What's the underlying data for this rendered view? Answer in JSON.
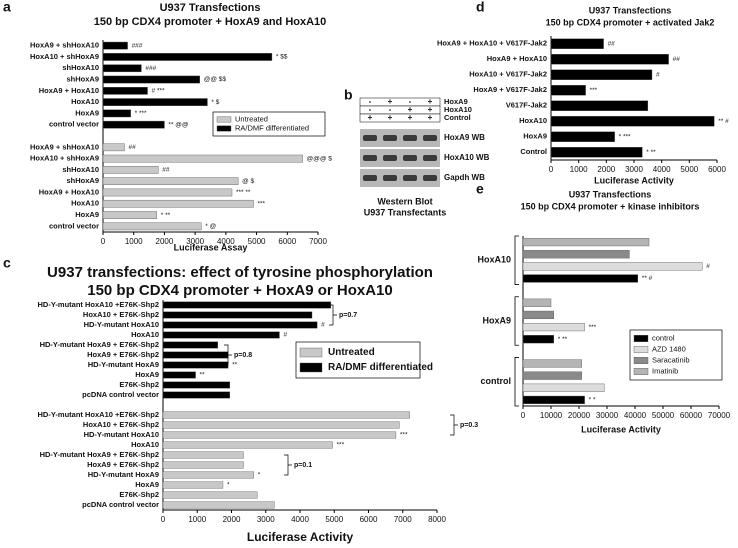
{
  "chart_data": [
    {
      "type": "bar",
      "panel": "a",
      "title": "U937 Transfections",
      "subtitle": "150 bp CDX4 promoter + HoxA9 and HoxA10",
      "categories": [
        "HoxA9 + shHoxA10",
        "HoxA10 + shHoxA9",
        "shHoxA10",
        "shHoxA9",
        "HoxA9 + HoxA10",
        "HoxA10",
        "HoxA9",
        "control vector"
      ],
      "series": [
        {
          "name": "RA/DMF differentiated",
          "color": "#000000",
          "values": [
            800,
            5500,
            1250,
            3150,
            1450,
            3400,
            900,
            2000
          ],
          "annotations": [
            "###",
            "* $$",
            "###",
            "@@ $$",
            "# ***",
            "* $",
            "* ***",
            "** @@"
          ]
        },
        {
          "name": "Untreated",
          "color": "#c8c8c8",
          "values": [
            700,
            6500,
            1800,
            4400,
            4200,
            4900,
            1750,
            3200
          ],
          "annotations": [
            "##",
            "@@@ $",
            "##",
            "@ $",
            "*** **",
            "***",
            "* **",
            "* @"
          ]
        }
      ],
      "xlabel": "Luciferase Assay",
      "xlim": [
        0,
        7000
      ],
      "xticks": [
        0,
        1000,
        2000,
        3000,
        4000,
        5000,
        6000,
        7000
      ]
    },
    {
      "type": "bar",
      "panel": "c",
      "title": "U937 transfections:  effect of tyrosine phosphorylation",
      "subtitle": "150 bp CDX4 promoter + HoxA9 or HoxA10",
      "categories": [
        "HD-Y-mutant HoxA10 +E76K-Shp2",
        "HoxA10 + E76K-Shp2",
        "HD-Y-mutant HoxA10",
        "HoxA10",
        "HD-Y-mutant HoxA9 + E76K-Shp2",
        "HoxA9 + E76K-Shp2",
        "HD-Y-mutant HoxA9",
        "HoxA9",
        "E76K-Shp2",
        "pcDNA control vector"
      ],
      "series": [
        {
          "name": "RA/DMF differentiated",
          "color": "#000000",
          "values": [
            4900,
            4350,
            4500,
            3400,
            1600,
            1900,
            1900,
            950,
            1950,
            1950
          ],
          "annotations": [
            null,
            null,
            "#",
            "#",
            null,
            null,
            "**",
            "**",
            null,
            null
          ]
        },
        {
          "name": "Untreated",
          "color": "#c8c8c8",
          "values": [
            7200,
            6900,
            6800,
            4950,
            2350,
            2350,
            2650,
            1750,
            2750,
            3250
          ],
          "annotations": [
            null,
            null,
            "***",
            "***",
            null,
            null,
            "*",
            "*",
            null,
            null
          ]
        }
      ],
      "p_values": [
        "p=0.7",
        "p=0.8",
        "p=0.3",
        "p=0.1"
      ],
      "xlabel": "Luciferase Activity",
      "xlim": [
        0,
        8000
      ],
      "xticks": [
        0,
        1000,
        2000,
        3000,
        4000,
        5000,
        6000,
        7000,
        8000
      ]
    },
    {
      "type": "bar",
      "panel": "d",
      "title": "U937 Transfections",
      "subtitle": "150 bp CDX4 promoter + activated Jak2",
      "categories": [
        "HoxA9 + HoxA10 + V617F-Jak2",
        "HoxA9 + HoxA10",
        "HoxA10 + V617F-Jak2",
        "HoxA9 + V617F-Jak2",
        "V617F-Jak2",
        "HoxA10",
        "HoxA9",
        "Control"
      ],
      "series": [
        {
          "name": "Luciferase",
          "color": "#000000",
          "values": [
            1900,
            4250,
            3650,
            1250,
            3500,
            5900,
            2300,
            3300
          ],
          "annotations": [
            "##",
            "##",
            "#",
            "***",
            null,
            "** #",
            "* ***",
            "* **"
          ]
        }
      ],
      "xlabel": "Luciferase Activity",
      "xlim": [
        0,
        6000
      ],
      "xticks": [
        0,
        1000,
        2000,
        3000,
        4000,
        5000,
        6000
      ]
    },
    {
      "type": "bar",
      "panel": "e",
      "title": "U937 Transfections",
      "subtitle": "150 bp CDX4 promoter + kinase inhibitors",
      "categories": [
        "HoxA10",
        "HoxA9",
        "control"
      ],
      "series": [
        {
          "name": "control",
          "color": "#000000",
          "values": [
            41000,
            11000,
            22000
          ],
          "annotations": [
            "** #",
            "* **",
            "* *"
          ]
        },
        {
          "name": "AZD 1480",
          "color": "#dcdcdc",
          "values": [
            64000,
            22000,
            29000
          ],
          "annotations": [
            "#",
            "***",
            null
          ]
        },
        {
          "name": "Saracatinib",
          "color": "#8a8a8a",
          "values": [
            38000,
            11000,
            21000
          ]
        },
        {
          "name": "Imatinib",
          "color": "#b4b4b4",
          "values": [
            45000,
            10000,
            21000
          ]
        }
      ],
      "xlabel": "Luciferase Activity",
      "xlim": [
        0,
        70000
      ],
      "xticks": [
        0,
        10000,
        20000,
        30000,
        40000,
        50000,
        60000,
        70000
      ]
    }
  ],
  "blot": {
    "panel": "b",
    "conditions": [
      {
        "name": "HoxA9",
        "lanes": [
          "-",
          "+",
          "-",
          "+"
        ]
      },
      {
        "name": "HoxA10",
        "lanes": [
          "-",
          "-",
          "+",
          "+"
        ]
      },
      {
        "name": "Control",
        "lanes": [
          "+",
          "+",
          "+",
          "+"
        ]
      }
    ],
    "bands": [
      "HoxA9 WB",
      "HoxA10 WB",
      "Gapdh WB"
    ],
    "caption": [
      "Western Blot",
      "U937 Transfectants"
    ]
  }
}
